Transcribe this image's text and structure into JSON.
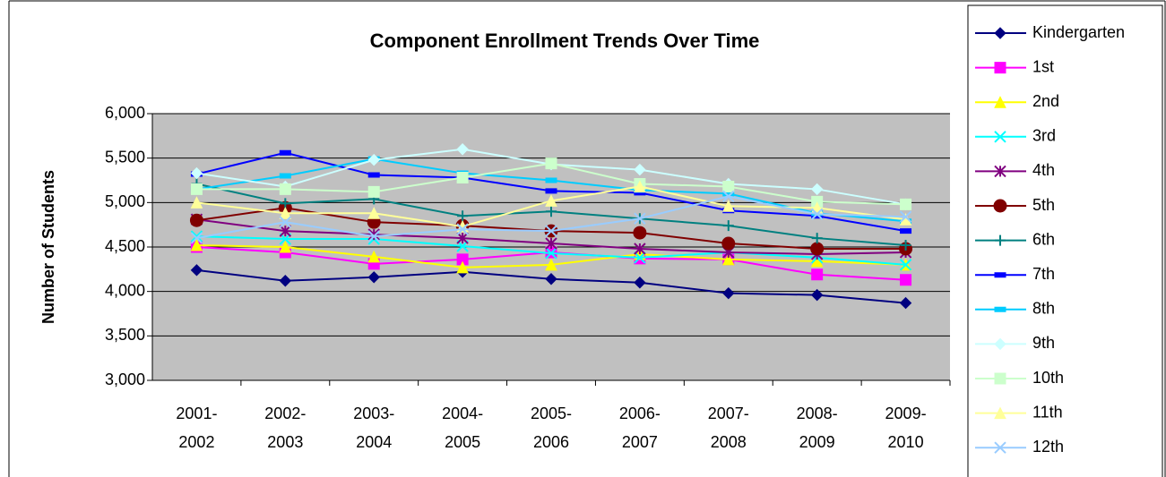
{
  "chart_data": {
    "type": "line",
    "title": "Component Enrollment Trends Over Time",
    "y_label": "Number of Students",
    "categories": [
      "2001-2002",
      "2002-2003",
      "2003-2004",
      "2004-2005",
      "2005-2006",
      "2006-2007",
      "2007-2008",
      "2008-2009",
      "2009-2010"
    ],
    "ylim": [
      3000,
      6000
    ],
    "yticks": [
      {
        "value": 3000,
        "label": "3,000"
      },
      {
        "value": 3500,
        "label": "3,500"
      },
      {
        "value": 4000,
        "label": "4,000"
      },
      {
        "value": 4500,
        "label": "4,500"
      },
      {
        "value": 5000,
        "label": "5,000"
      },
      {
        "value": 5500,
        "label": "5,500"
      },
      {
        "value": 6000,
        "label": "6,000"
      }
    ],
    "grid": true,
    "plot_background": "#c0c0c0",
    "legend": "right",
    "series": [
      {
        "name": "Kindergarten",
        "color": "#000080",
        "marker": "diamond",
        "values": [
          4240,
          4120,
          4160,
          4220,
          4140,
          4100,
          3980,
          3960,
          3870
        ]
      },
      {
        "name": "1st",
        "color": "#ff00ff",
        "marker": "square",
        "values": [
          4500,
          4440,
          4310,
          4360,
          4440,
          4370,
          4360,
          4190,
          4130
        ]
      },
      {
        "name": "2nd",
        "color": "#ffff00",
        "marker": "triangle",
        "values": [
          4520,
          4500,
          4390,
          4270,
          4300,
          4420,
          4360,
          4340,
          4300
        ]
      },
      {
        "name": "3rd",
        "color": "#00ffff",
        "marker": "x",
        "values": [
          4620,
          4590,
          4590,
          4510,
          4430,
          4380,
          4440,
          4380,
          4300
        ]
      },
      {
        "name": "4th",
        "color": "#800080",
        "marker": "star",
        "values": [
          4810,
          4680,
          4640,
          4600,
          4540,
          4480,
          4440,
          4420,
          4440
        ]
      },
      {
        "name": "5th",
        "color": "#800000",
        "marker": "circle",
        "values": [
          4800,
          4940,
          4780,
          4740,
          4680,
          4660,
          4540,
          4480,
          4480
        ]
      },
      {
        "name": "6th",
        "color": "#008080",
        "marker": "plus",
        "values": [
          5210,
          4990,
          5040,
          4850,
          4900,
          4820,
          4740,
          4600,
          4520
        ]
      },
      {
        "name": "7th",
        "color": "#0000ff",
        "marker": "dash",
        "values": [
          5320,
          5560,
          5310,
          5280,
          5130,
          5110,
          4910,
          4850,
          4680
        ]
      },
      {
        "name": "8th",
        "color": "#00ccff",
        "marker": "dash",
        "values": [
          5150,
          5300,
          5490,
          5330,
          5250,
          5140,
          5100,
          4880,
          4790
        ]
      },
      {
        "name": "9th",
        "color": "#ccffff",
        "marker": "diamond",
        "values": [
          5330,
          5180,
          5480,
          5600,
          5430,
          5370,
          5210,
          5150,
          4980
        ]
      },
      {
        "name": "10th",
        "color": "#ccffcc",
        "marker": "square",
        "values": [
          5150,
          5150,
          5120,
          5280,
          5440,
          5210,
          5180,
          5010,
          4980
        ]
      },
      {
        "name": "11th",
        "color": "#ffff99",
        "marker": "triangle",
        "values": [
          5000,
          4880,
          4880,
          4730,
          5020,
          5180,
          4960,
          4940,
          4810
        ]
      },
      {
        "name": "12th",
        "color": "#99ccff",
        "marker": "x",
        "values": [
          4600,
          4780,
          4620,
          4700,
          4680,
          4820,
          5070,
          4870,
          4840
        ]
      }
    ]
  }
}
